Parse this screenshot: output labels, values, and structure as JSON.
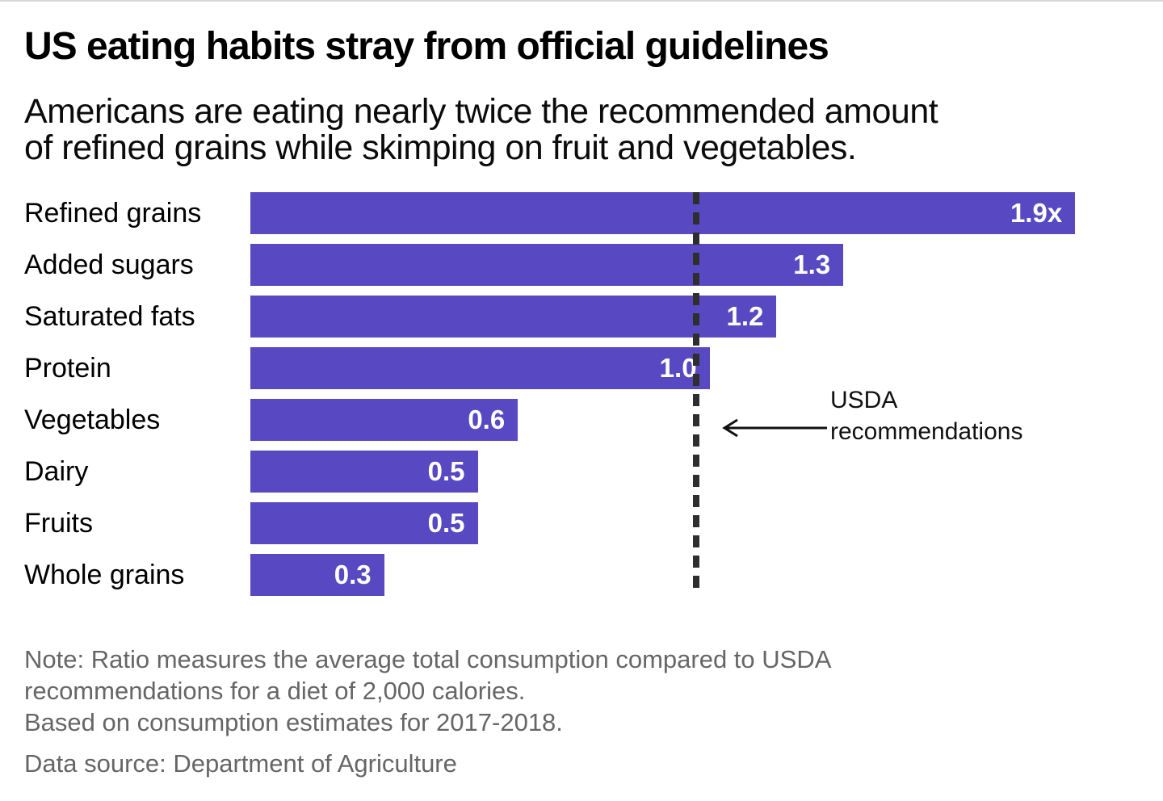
{
  "header": {
    "title": "US eating habits stray from official guidelines",
    "subtitle_line1": "Americans are eating nearly twice the recommended amount",
    "subtitle_line2": "of refined grains while skimping on fruit and vegetables."
  },
  "chart_data": {
    "type": "bar",
    "orientation": "horizontal",
    "categories": [
      "Refined grains",
      "Added sugars",
      "Saturated fats",
      "Protein",
      "Vegetables",
      "Dairy",
      "Fruits",
      "Whole grains"
    ],
    "values": [
      1.9,
      1.3,
      1.2,
      1.0,
      0.6,
      0.5,
      0.5,
      0.3
    ],
    "value_labels": [
      "1.9x",
      "1.3",
      "1.2",
      "1.0",
      "0.6",
      "0.5",
      "0.5",
      "0.3"
    ],
    "bar_display_values": [
      1.85,
      1.33,
      1.18,
      1.03,
      0.6,
      0.51,
      0.51,
      0.3
    ],
    "xlim": [
      0,
      2.0
    ],
    "grid": "off",
    "bar_color": "#5849c3",
    "value_label_color": "#ffffff",
    "reference_line": {
      "value": 1.0,
      "color": "#2e2e2e",
      "label_line1": "USDA",
      "label_line2": "recommendations",
      "arrow_color": "#111111"
    }
  },
  "footer": {
    "note_line1": "Note: Ratio measures the average total consumption compared to USDA",
    "note_line2": "recommendations for a diet of 2,000 calories.",
    "note_line3": "Based on consumption estimates for 2017-2018.",
    "source": "Data source: Department of Agriculture"
  }
}
